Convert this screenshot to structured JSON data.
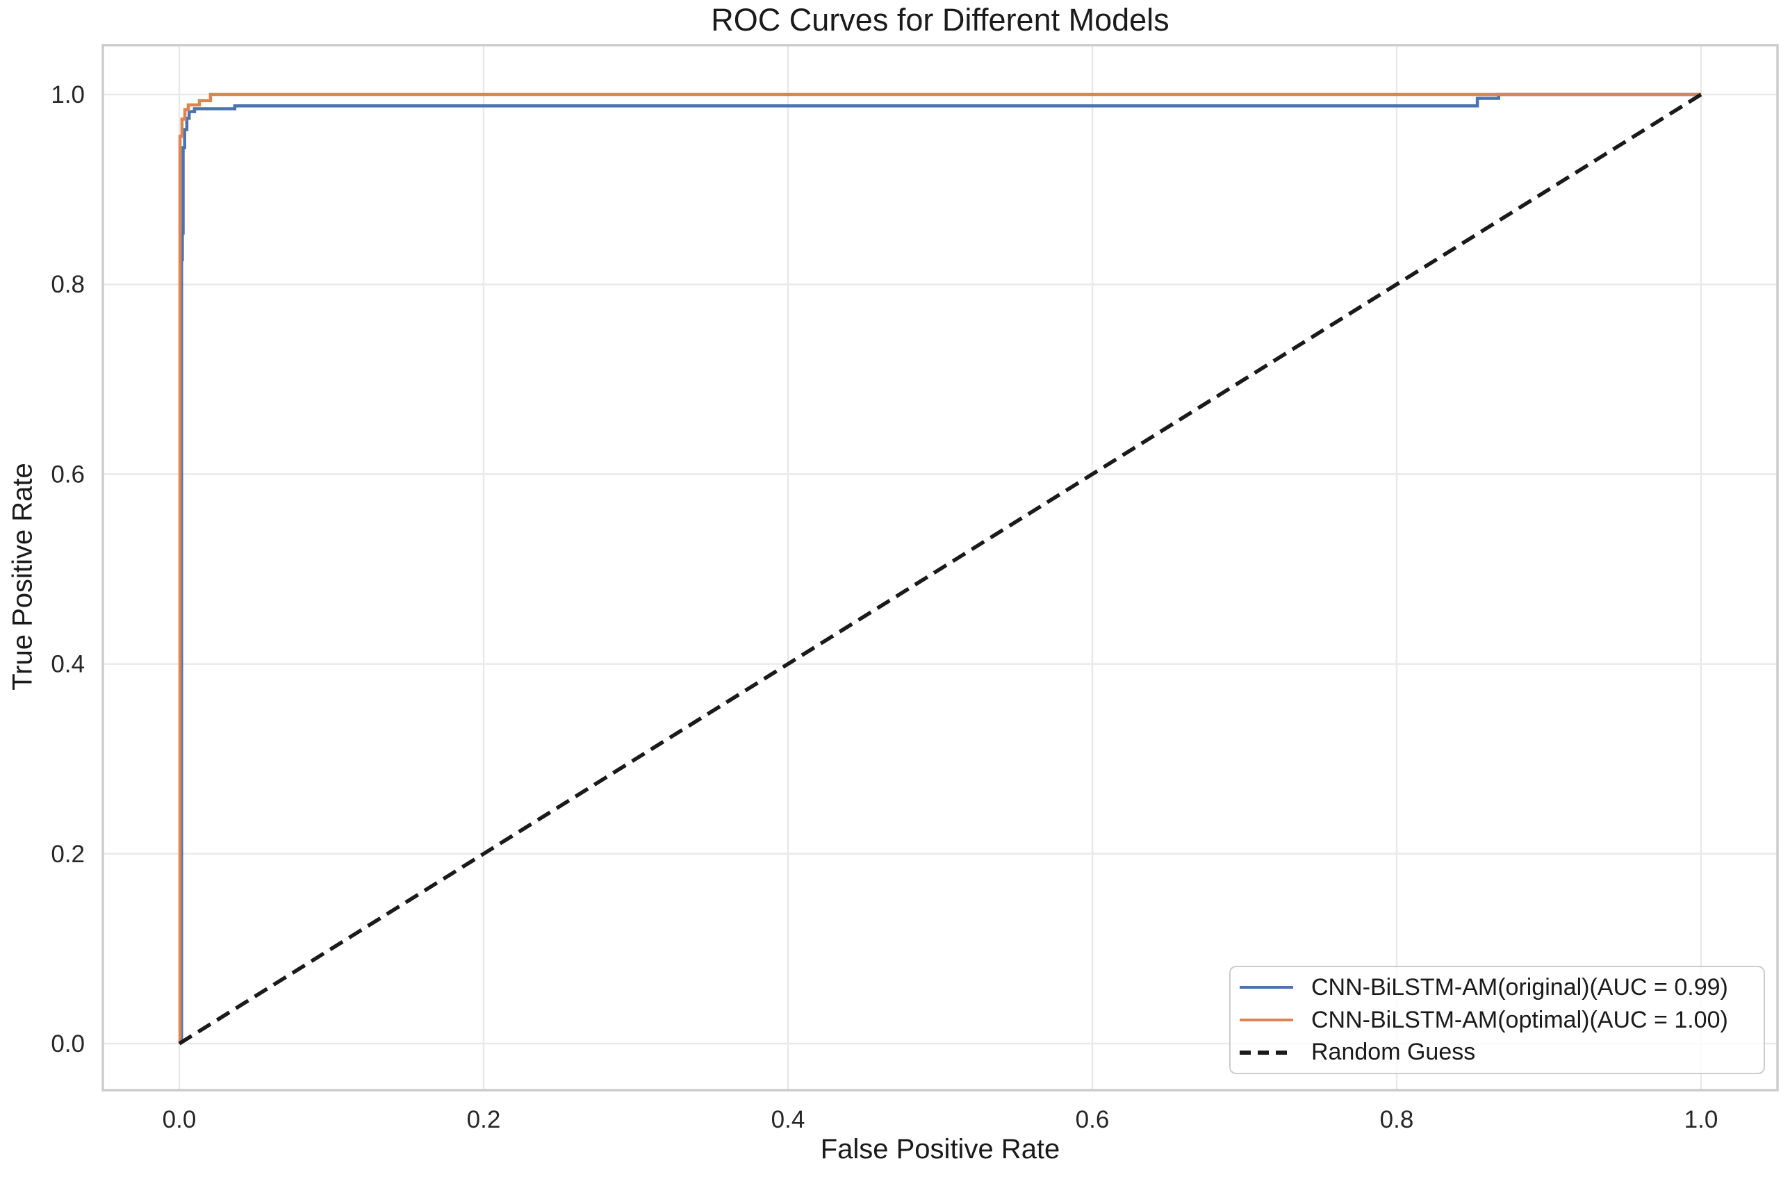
{
  "chart_data": {
    "type": "line",
    "title": "ROC Curves for Different Models",
    "xlabel": "False Positive Rate",
    "ylabel": "True Positive Rate",
    "xlim": [
      0.0,
      1.0
    ],
    "ylim": [
      0.0,
      1.0
    ],
    "x_ticks": [
      "0.0",
      "0.2",
      "0.4",
      "0.6",
      "0.8",
      "1.0"
    ],
    "y_ticks": [
      "0.0",
      "0.2",
      "0.4",
      "0.6",
      "0.8",
      "1.0"
    ],
    "grid": true,
    "legend_position": "lower right",
    "colors": {
      "grid": "#e9e9e9",
      "spine": "#cccccc",
      "tick_text": "#262626",
      "background": "#ffffff",
      "series_blue": "#4C72B0",
      "series_orange": "#DD8452",
      "series_dashed": "#1a1a1a"
    },
    "series": [
      {
        "name": "cnn-bilstm-am-original",
        "label": "CNN-BiLSTM-AM(original)(AUC = 0.99)",
        "auc": "0.99",
        "color": "#4C72B0",
        "style": "solid",
        "points": [
          [
            0.0015,
            0.0
          ],
          [
            0.0015,
            0.826
          ],
          [
            0.002,
            0.826
          ],
          [
            0.002,
            0.854
          ],
          [
            0.0025,
            0.854
          ],
          [
            0.0025,
            0.944
          ],
          [
            0.0035,
            0.944
          ],
          [
            0.0035,
            0.963
          ],
          [
            0.005,
            0.963
          ],
          [
            0.005,
            0.975
          ],
          [
            0.0065,
            0.975
          ],
          [
            0.0065,
            0.982
          ],
          [
            0.01,
            0.982
          ],
          [
            0.01,
            0.985
          ],
          [
            0.0365,
            0.985
          ],
          [
            0.0365,
            0.988
          ],
          [
            0.853,
            0.988
          ],
          [
            0.853,
            0.996
          ],
          [
            0.867,
            0.996
          ],
          [
            0.867,
            1.0
          ],
          [
            1.0,
            1.0
          ]
        ]
      },
      {
        "name": "cnn-bilstm-am-optimal",
        "label": "CNN-BiLSTM-AM(optimal)(AUC = 1.00)",
        "auc": "1.00",
        "color": "#DD8452",
        "style": "solid",
        "points": [
          [
            0.0005,
            0.0
          ],
          [
            0.0005,
            0.956
          ],
          [
            0.0018,
            0.956
          ],
          [
            0.0018,
            0.974
          ],
          [
            0.0037,
            0.974
          ],
          [
            0.0037,
            0.984
          ],
          [
            0.0059,
            0.984
          ],
          [
            0.0059,
            0.989
          ],
          [
            0.0132,
            0.989
          ],
          [
            0.0132,
            0.9935
          ],
          [
            0.0205,
            0.9935
          ],
          [
            0.0205,
            1.0
          ],
          [
            1.0,
            1.0
          ]
        ]
      },
      {
        "name": "random-guess",
        "label": "Random Guess",
        "color": "#1a1a1a",
        "style": "dashed",
        "points": [
          [
            0.0,
            0.0
          ],
          [
            1.0,
            1.0
          ]
        ]
      }
    ]
  }
}
